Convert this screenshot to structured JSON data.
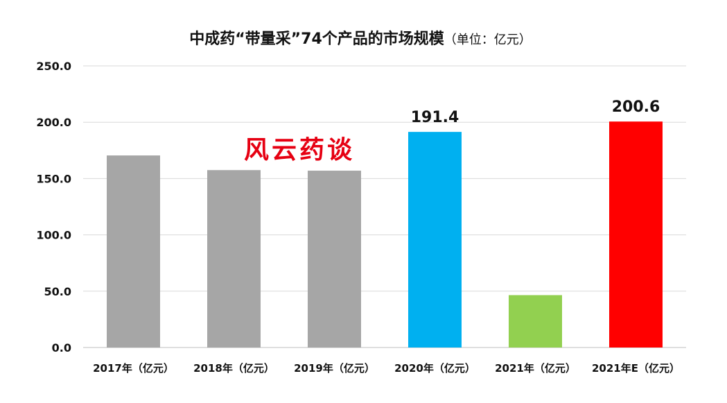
{
  "chart_data": {
    "type": "bar",
    "title": "中成药“带量采”74个产品的市场规模",
    "subtitle": "（单位：亿元）",
    "categories": [
      "2017年（亿元）",
      "2018年（亿元）",
      "2019年（亿元）",
      "2020年（亿元）",
      "2021年（亿元）",
      "2021年E（亿元）"
    ],
    "values": [
      170.5,
      157.5,
      157.0,
      191.4,
      46.5,
      200.6
    ],
    "bar_colors": [
      "#a6a6a6",
      "#a6a6a6",
      "#a6a6a6",
      "#00b0f0",
      "#92d050",
      "#ff0000"
    ],
    "data_labels": {
      "3": "191.4",
      "5": "200.6"
    },
    "yticks": [
      "0.0",
      "50.0",
      "100.0",
      "150.0",
      "200.0",
      "250.0"
    ],
    "ylim": [
      0,
      250
    ],
    "grid": true,
    "watermark": "风云药谈"
  }
}
